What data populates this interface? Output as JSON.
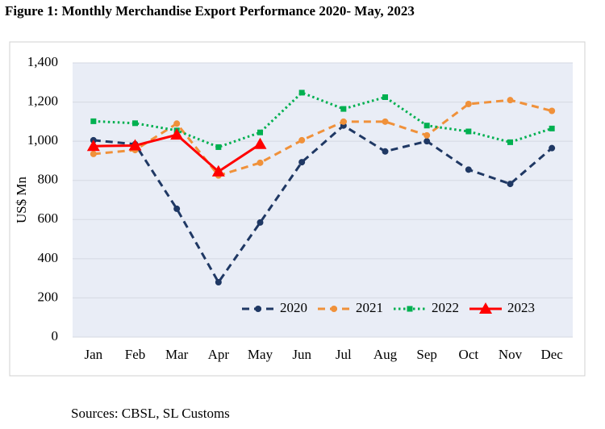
{
  "chart_data": {
    "type": "line",
    "title": "Figure 1: Monthly Merchandise Export Performance 2020- May, 2023",
    "y_label": "US$ Mn",
    "source": "Sources: CBSL, SL Customs",
    "categories": [
      "Jan",
      "Feb",
      "Mar",
      "Apr",
      "May",
      "Jun",
      "Jul",
      "Aug",
      "Sep",
      "Oct",
      "Nov",
      "Dec"
    ],
    "ylim": [
      0,
      1400
    ],
    "yticks": [
      0,
      200,
      400,
      600,
      800,
      {
        "value": 1000,
        "label": "1,000"
      },
      {
        "value": 1200,
        "label": "1,200"
      },
      {
        "value": 1400,
        "label": "1,400"
      }
    ],
    "grid": true,
    "legend": "bottom-right",
    "series": [
      {
        "name": "2020",
        "color": "#1f3864",
        "style": "dashed",
        "marker": "circle",
        "values": [
          1005,
          985,
          655,
          280,
          585,
          893,
          1080,
          948,
          1000,
          855,
          782,
          965
        ]
      },
      {
        "name": "2021",
        "color": "#f0913a",
        "style": "dashed",
        "marker": "circle",
        "values": [
          935,
          955,
          1090,
          825,
          890,
          1005,
          1100,
          1100,
          1030,
          1190,
          1210,
          1155
        ]
      },
      {
        "name": "2022",
        "color": "#00b050",
        "style": "dotted",
        "marker": "square",
        "values": [
          1102,
          1092,
          1055,
          970,
          1045,
          1248,
          1165,
          1225,
          1080,
          1050,
          995,
          1065
        ]
      },
      {
        "name": "2023",
        "color": "#ff0000",
        "style": "solid",
        "marker": "triangle",
        "values": [
          975,
          978,
          1033,
          845,
          985,
          null,
          null,
          null,
          null,
          null,
          null,
          null
        ]
      }
    ]
  }
}
